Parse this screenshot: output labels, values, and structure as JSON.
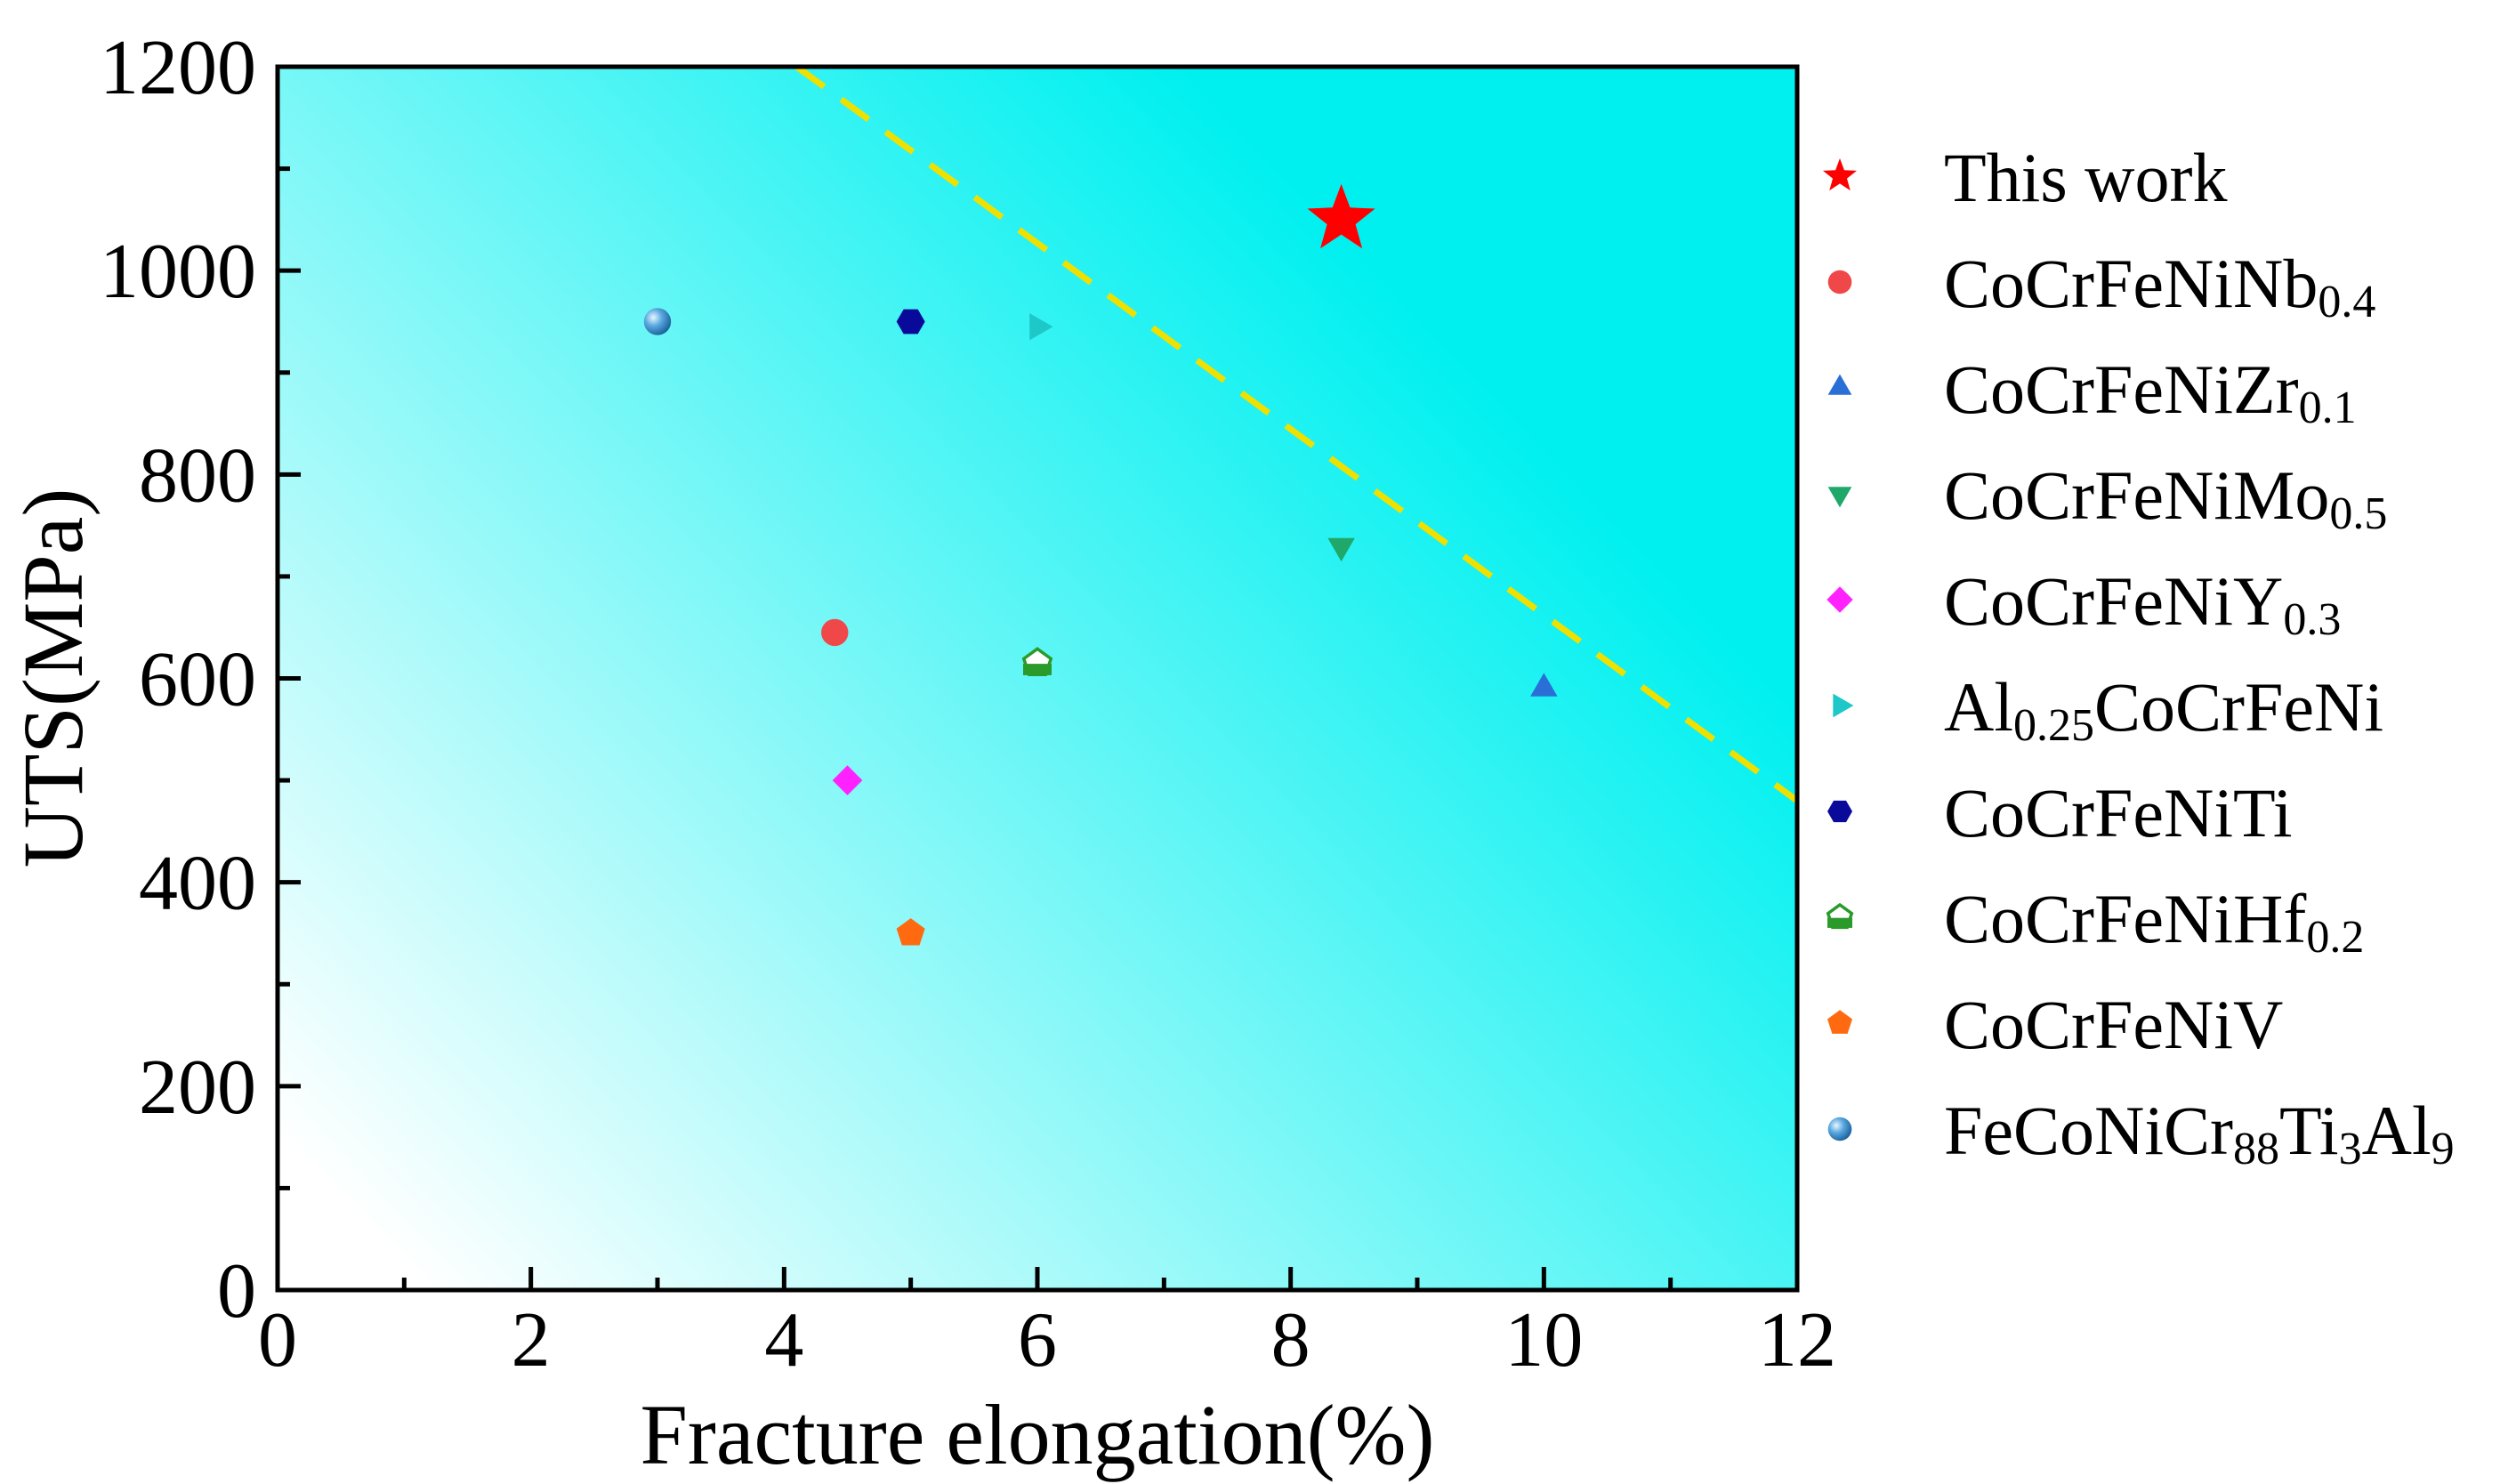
{
  "chart_data": {
    "type": "scatter",
    "title": "",
    "xlabel": "Fracture elongation(%)",
    "ylabel": "UTS(MPa)",
    "xlim": [
      0,
      12
    ],
    "ylim": [
      0,
      1200
    ],
    "xticks": [
      0,
      2,
      4,
      6,
      8,
      10,
      12
    ],
    "yticks": [
      0,
      200,
      400,
      600,
      800,
      1000,
      1200
    ],
    "grid": false,
    "legend_position": "right",
    "background": {
      "type": "gradient",
      "colors": [
        "#ffffff",
        "#00f0f0"
      ]
    },
    "trend_line": {
      "style": "dashed",
      "color": "#f0e000",
      "points": [
        [
          4.1,
          1200
        ],
        [
          12,
          480
        ]
      ]
    },
    "series": [
      {
        "name": "This work",
        "parts": [
          {
            "t": "This work"
          }
        ],
        "marker": "star",
        "color": "#ff0000",
        "x": [
          8.4
        ],
        "y": [
          1050
        ]
      },
      {
        "name": "CoCrFeNiNb0.4",
        "parts": [
          {
            "t": "CoCrFeNiNb"
          },
          {
            "t": "0.4",
            "sub": true
          }
        ],
        "marker": "circle",
        "color": "#f04848",
        "x": [
          4.4
        ],
        "y": [
          645
        ]
      },
      {
        "name": "CoCrFeNiZr0.1",
        "parts": [
          {
            "t": "CoCrFeNiZr"
          },
          {
            "t": "0.1",
            "sub": true
          }
        ],
        "marker": "triangle-up",
        "color": "#2a6fd6",
        "x": [
          10
        ],
        "y": [
          590
        ]
      },
      {
        "name": "CoCrFeNiMo0.5",
        "parts": [
          {
            "t": "CoCrFeNiMo"
          },
          {
            "t": "0.5",
            "sub": true
          }
        ],
        "marker": "triangle-down",
        "color": "#1fa86a",
        "x": [
          8.4
        ],
        "y": [
          730
        ]
      },
      {
        "name": "CoCrFeNiY0.3",
        "parts": [
          {
            "t": "CoCrFeNiY"
          },
          {
            "t": "0.3",
            "sub": true
          }
        ],
        "marker": "diamond",
        "color": "#ff22ff",
        "x": [
          4.5
        ],
        "y": [
          500
        ]
      },
      {
        "name": "Al0.25CoCrFeNi",
        "parts": [
          {
            "t": "Al"
          },
          {
            "t": "0.25",
            "sub": true
          },
          {
            "t": "CoCrFeNi"
          }
        ],
        "marker": "triangle-right",
        "color": "#1ec8c8",
        "x": [
          6
        ],
        "y": [
          945
        ]
      },
      {
        "name": "CoCrFeNiTi",
        "parts": [
          {
            "t": "CoCrFeNiTi"
          }
        ],
        "marker": "hexagon",
        "color": "#0a0a9a",
        "x": [
          5
        ],
        "y": [
          950
        ]
      },
      {
        "name": "CoCrFeNiHf0.2",
        "parts": [
          {
            "t": "CoCrFeNiHf"
          },
          {
            "t": "0.2",
            "sub": true
          }
        ],
        "marker": "pentagon-half",
        "color": "#2a9a2a",
        "x": [
          6
        ],
        "y": [
          615
        ]
      },
      {
        "name": "CoCrFeNiV",
        "parts": [
          {
            "t": "CoCrFeNiV"
          }
        ],
        "marker": "pentagon",
        "color": "#ff6a10",
        "x": [
          5
        ],
        "y": [
          350
        ]
      },
      {
        "name": "FeCoNiCr88Ti3Al9",
        "parts": [
          {
            "t": "FeCoNiCr"
          },
          {
            "t": "88",
            "sub": true
          },
          {
            "t": "Ti"
          },
          {
            "t": "3",
            "sub": true
          },
          {
            "t": "Al"
          },
          {
            "t": "9",
            "sub": true
          }
        ],
        "marker": "sphere",
        "color": "#3a8fd0",
        "x": [
          3
        ],
        "y": [
          950
        ]
      }
    ]
  }
}
